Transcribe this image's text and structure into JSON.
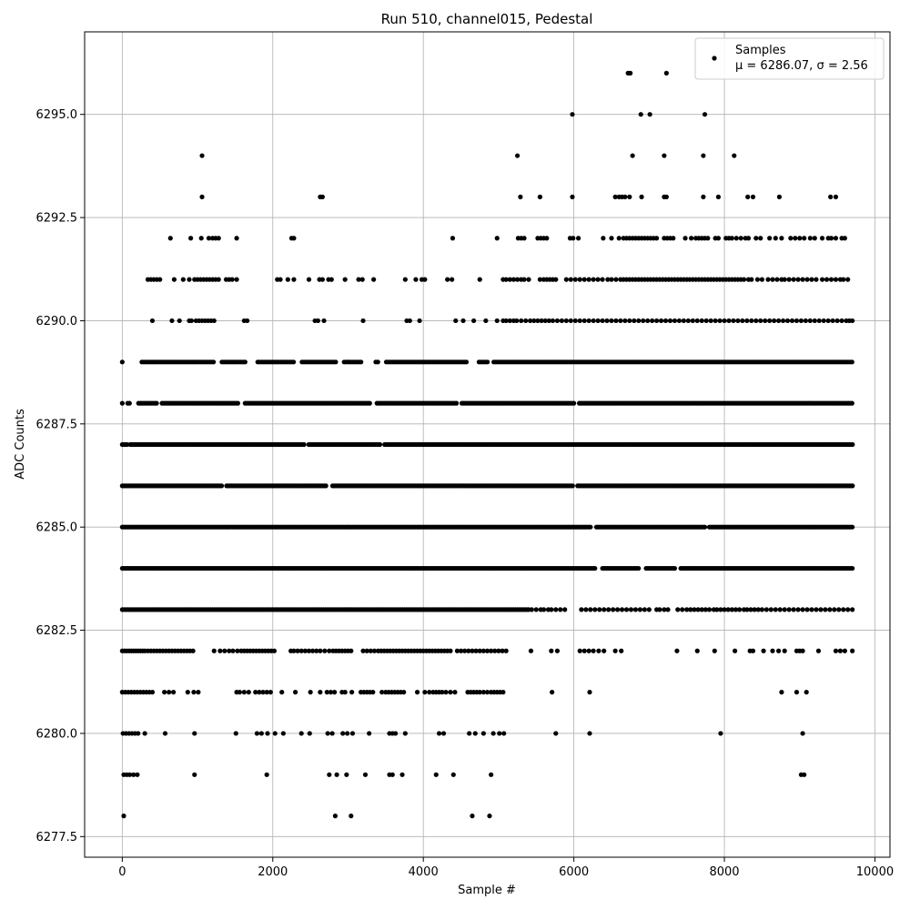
{
  "chart_data": {
    "type": "scatter",
    "title": "Run 510, channel015, Pedestal",
    "xlabel": "Sample #",
    "ylabel": "ADC Counts",
    "xlim": [
      -500,
      10200
    ],
    "ylim": [
      6277,
      6297
    ],
    "xticks": [
      0,
      2000,
      4000,
      6000,
      8000,
      10000
    ],
    "xtick_labels": [
      "0",
      "2000",
      "4000",
      "6000",
      "8000",
      "10000"
    ],
    "yticks": [
      6277.5,
      6280.0,
      6282.5,
      6285.0,
      6287.5,
      6290.0,
      6292.5,
      6295.0
    ],
    "ytick_labels": [
      "6277.5",
      "6280.0",
      "6282.5",
      "6285.0",
      "6287.5",
      "6290.0",
      "6292.5",
      "6295.0"
    ],
    "grid": true,
    "legend_position": "top-right",
    "marker_color": "#000000",
    "series": [
      {
        "name": "Samples",
        "stats_label": "μ = 6286.07, σ = 2.56",
        "mean": 6286.07,
        "sigma": 2.56,
        "x_range": [
          0,
          9715
        ],
        "levels": [
          {
            "y": 6278,
            "x": [
              20,
              2830,
              3040,
              4650,
              4880
            ]
          },
          {
            "y": 6279,
            "x": [
              20,
              60,
              100,
              150,
              200,
              960,
              1920,
              2750,
              2850,
              2980,
              3230,
              3550,
              3590,
              3720,
              4170,
              4400,
              4900,
              9020,
              9060
            ]
          },
          {
            "y": 6280,
            "x": [
              10,
              50,
              90,
              130,
              170,
              210,
              300,
              570,
              960,
              1510,
              1790,
              1850,
              1930,
              2030,
              2140,
              2380,
              2490,
              2730,
              2790,
              2930,
              2990,
              3060,
              3280,
              3550,
              3590,
              3630,
              3760,
              4210,
              4270,
              4610,
              4690,
              4800,
              4930,
              5010,
              5070,
              5760,
              6210,
              7950,
              9040
            ]
          },
          {
            "y": 6281,
            "x": [
              0,
              40,
              80,
              120,
              160,
              200,
              240,
              280,
              320,
              360,
              400,
              560,
              620,
              680,
              870,
              950,
              1010,
              1520,
              1560,
              1620,
              1680,
              1770,
              1820,
              1870,
              1920,
              1970,
              2120,
              2300,
              2500,
              2630,
              2720,
              2770,
              2820,
              2920,
              2960,
              3050,
              3170,
              3210,
              3250,
              3290,
              3330,
              3450,
              3500,
              3540,
              3580,
              3620,
              3660,
              3700,
              3740,
              3920,
              4020,
              4080,
              4130,
              4170,
              4210,
              4250,
              4300,
              4360,
              4420,
              4590,
              4630,
              4670,
              4710,
              4750,
              4800,
              4850,
              4900,
              4940,
              4980,
              5020,
              5060,
              5710,
              6210,
              8760,
              8960,
              9090
            ]
          },
          {
            "y": 6282,
            "x": [
              0,
              30,
              60,
              90,
              120,
              150,
              180,
              210,
              240,
              270,
              300,
              340,
              380,
              420,
              460,
              500,
              540,
              580,
              620,
              660,
              700,
              740,
              780,
              820,
              860,
              900,
              940,
              1220,
              1300,
              1360,
              1420,
              1470,
              1530,
              1580,
              1620,
              1660,
              1700,
              1740,
              1780,
              1820,
              1860,
              1900,
              1940,
              1980,
              2020,
              2240,
              2280,
              2330,
              2380,
              2430,
              2480,
              2530,
              2580,
              2630,
              2690,
              2750,
              2800,
              2840,
              2880,
              2920,
              2960,
              3000,
              3040,
              3200,
              3250,
              3300,
              3350,
              3400,
              3440,
              3480,
              3520,
              3560,
              3600,
              3640,
              3680,
              3720,
              3760,
              3800,
              3840,
              3880,
              3920,
              3960,
              4000,
              4040,
              4080,
              4120,
              4160,
              4200,
              4240,
              4280,
              4320,
              4360,
              4450,
              4500,
              4550,
              4600,
              4650,
              4700,
              4750,
              4800,
              4850,
              4900,
              4950,
              5000,
              5050,
              5100,
              5430,
              5700,
              5780,
              6080,
              6140,
              6200,
              6260,
              6330,
              6400,
              6550,
              6630,
              7370,
              7640,
              7870,
              8140,
              8340,
              8380,
              8520,
              8640,
              8720,
              8800,
              8960,
              9000,
              9040,
              9250,
              9480,
              9540,
              9600,
              9700
            ]
          },
          {
            "y": 6283,
            "step": 25,
            "x_range": [
              0,
              5400
            ],
            "extra": [
              5440,
              5500,
              5560,
              5600,
              5660,
              5700,
              5760,
              5820,
              5880,
              6100,
              6160,
              6220,
              6280,
              6340,
              6400,
              6460,
              6520,
              6580,
              6640,
              6700,
              6760,
              6820,
              6880,
              6940,
              7000,
              7100,
              7140,
              7200,
              7250,
              7380,
              7440,
              7500,
              7550,
              7600,
              7650,
              7700,
              7750,
              7800,
              7860,
              7900,
              7950,
              8000,
              8050,
              8100,
              8150,
              8200,
              8260,
              8300,
              8350,
              8400,
              8450,
              8500,
              8560,
              8620,
              8680,
              8740,
              8800,
              8860,
              8920,
              8980,
              9040,
              9100,
              9160,
              9220,
              9280,
              9340,
              9400,
              9460,
              9520,
              9580,
              9640,
              9700
            ]
          },
          {
            "y": 6284,
            "step": 20,
            "x_range": [
              0,
              9715
            ],
            "gaps": [
              [
                6300,
                6360
              ],
              [
                6880,
                6940
              ],
              [
                7360,
                7400
              ]
            ]
          },
          {
            "y": 6285,
            "step": 20,
            "x_range": [
              0,
              9715
            ],
            "gaps": [
              [
                6240,
                6280
              ],
              [
                7760,
                7790
              ]
            ]
          },
          {
            "y": 6286,
            "step": 22,
            "x_range": [
              0,
              9715
            ],
            "gaps": [
              [
                1340,
                1380
              ],
              [
                2720,
                2780
              ],
              [
                6000,
                6040
              ]
            ]
          },
          {
            "y": 6287,
            "step": 21,
            "x_range": [
              0,
              9715
            ],
            "gaps": [
              [
                70,
                100
              ],
              [
                2420,
                2460
              ],
              [
                3440,
                3480
              ]
            ]
          },
          {
            "y": 6288,
            "step": 24,
            "x_range": [
              0,
              9715
            ],
            "gaps": [
              [
                20,
                70
              ],
              [
                120,
                200
              ],
              [
                470,
                520
              ],
              [
                1550,
                1620
              ],
              [
                3300,
                3360
              ],
              [
                4460,
                4500
              ],
              [
                6020,
                6060
              ]
            ]
          },
          {
            "y": 6289,
            "step": 28,
            "x_range": [
              260,
              9715
            ],
            "gaps": [
              [
                1220,
                1300
              ],
              [
                1640,
                1790
              ],
              [
                2300,
                2370
              ],
              [
                2840,
                2920
              ],
              [
                3180,
                3360
              ],
              [
                3400,
                3480
              ],
              [
                4600,
                4720
              ],
              [
                4870,
                4930
              ]
            ],
            "extra": [
              0
            ]
          },
          {
            "y": 6290,
            "x": [
              400,
              660,
              760,
              890,
              920,
              980,
              1020,
              1060,
              1100,
              1140,
              1180,
              1220,
              1620,
              1660,
              2560,
              2600,
              2680,
              3200,
              3780,
              3820,
              3950,
              4430,
              4530,
              4670,
              4830,
              4980,
              5060,
              5100,
              5150,
              5200,
              5240,
              5300,
              5360,
              5420,
              5470,
              5520,
              5570,
              5620,
              5670,
              5720,
              5780,
              5840,
              5900,
              5960,
              6020,
              6080,
              6140,
              6200,
              6260,
              6320,
              6380,
              6440,
              6500,
              6560,
              6620,
              6680,
              6740,
              6800,
              6860,
              6920,
              6980,
              7040,
              7100,
              7160,
              7220,
              7280,
              7340,
              7400,
              7460,
              7520,
              7580,
              7640,
              7700,
              7760,
              7820,
              7880,
              7940,
              8000,
              8060,
              8120,
              8180,
              8240,
              8300,
              8360,
              8420,
              8480,
              8540,
              8600,
              8660,
              8720,
              8780,
              8840,
              8900,
              8960,
              9020,
              9080,
              9140,
              9200,
              9260,
              9320,
              9380,
              9440,
              9500,
              9560,
              9620,
              9660,
              9700
            ]
          },
          {
            "y": 6291,
            "x": [
              340,
              380,
              420,
              460,
              500,
              690,
              810,
              890,
              960,
              1000,
              1040,
              1080,
              1120,
              1160,
              1200,
              1240,
              1280,
              1380,
              1420,
              1460,
              1520,
              2060,
              2100,
              2200,
              2280,
              2480,
              2620,
              2660,
              2740,
              2780,
              2960,
              3140,
              3190,
              3340,
              3760,
              3900,
              3980,
              4020,
              4320,
              4380,
              4750,
              5060,
              5100,
              5150,
              5200,
              5250,
              5300,
              5340,
              5400,
              5550,
              5600,
              5640,
              5680,
              5720,
              5760,
              5900,
              5960,
              6020,
              6080,
              6140,
              6200,
              6260,
              6320,
              6380,
              6450,
              6500,
              6560,
              6620,
              6660,
              6700,
              6740,
              6780,
              6820,
              6860,
              6900,
              6940,
              6980,
              7020,
              7060,
              7100,
              7140,
              7180,
              7220,
              7260,
              7300,
              7340,
              7380,
              7420,
              7460,
              7500,
              7540,
              7580,
              7620,
              7660,
              7700,
              7740,
              7780,
              7820,
              7860,
              7900,
              7940,
              7980,
              8020,
              8060,
              8100,
              8140,
              8180,
              8220,
              8260,
              8320,
              8360,
              8440,
              8500,
              8580,
              8640,
              8700,
              8760,
              8800,
              8860,
              8920,
              8980,
              9040,
              9100,
              9160,
              9220,
              9300,
              9360,
              9420,
              9480,
              9540,
              9580,
              9640
            ]
          },
          {
            "y": 6292,
            "x": [
              640,
              910,
              1050,
              1150,
              1200,
              1240,
              1280,
              1520,
              2250,
              2280,
              4390,
              4980,
              5260,
              5300,
              5340,
              5520,
              5560,
              5600,
              5640,
              5950,
              5990,
              6060,
              6390,
              6500,
              6600,
              6660,
              6700,
              6740,
              6780,
              6820,
              6860,
              6900,
              6940,
              6980,
              7020,
              7060,
              7100,
              7200,
              7240,
              7280,
              7320,
              7480,
              7560,
              7620,
              7660,
              7700,
              7740,
              7780,
              7880,
              7920,
              8020,
              8060,
              8100,
              8160,
              8220,
              8280,
              8320,
              8420,
              8480,
              8600,
              8680,
              8760,
              8880,
              8940,
              9000,
              9060,
              9140,
              9200,
              9300,
              9380,
              9420,
              9480,
              9560,
              9600
            ]
          },
          {
            "y": 6293,
            "x": [
              1060,
              2630,
              2660,
              5290,
              5550,
              5980,
              6550,
              6600,
              6640,
              6680,
              6740,
              6900,
              7200,
              7230,
              7720,
              7920,
              8310,
              8380,
              8730,
              9410,
              9480
            ]
          },
          {
            "y": 6294,
            "x": [
              1060,
              5250,
              6780,
              7200,
              7720,
              8130
            ]
          },
          {
            "y": 6295,
            "x": [
              5980,
              6890,
              7010,
              7740
            ]
          },
          {
            "y": 6296,
            "x": [
              6720,
              6750,
              7230
            ]
          }
        ]
      }
    ]
  }
}
